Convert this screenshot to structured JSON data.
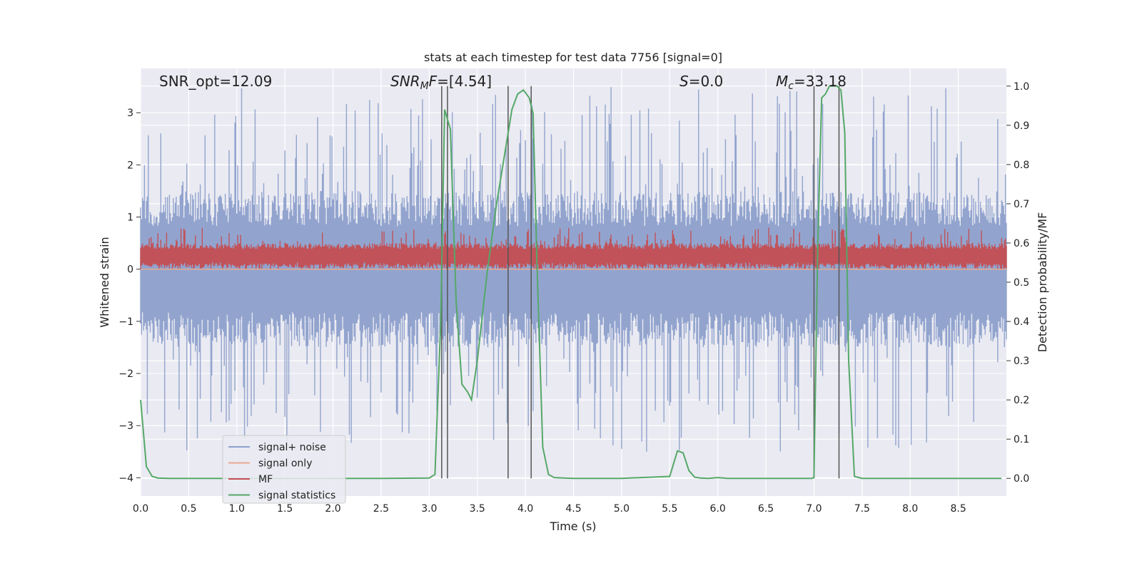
{
  "chart_data": {
    "type": "line",
    "title": "stats at each timestep for test data 7756 [signal=0]",
    "xlabel": "Time (s)",
    "ylabel_left": "Whitened strain",
    "ylabel_right": "Detection probability/MF",
    "xlim": [
      0.0,
      9.0
    ],
    "ylim_left": [
      -4.35,
      3.85
    ],
    "ylim_right": [
      -0.045,
      1.045
    ],
    "x_ticks": [
      0.0,
      0.5,
      1.0,
      1.5,
      2.0,
      2.5,
      3.0,
      3.5,
      4.0,
      4.5,
      5.0,
      5.5,
      6.0,
      6.5,
      7.0,
      7.5,
      8.0,
      8.5
    ],
    "x_tick_labels": [
      "0.0",
      "0.5",
      "1.0",
      "1.5",
      "2.0",
      "2.5",
      "3.0",
      "3.5",
      "4.0",
      "4.5",
      "5.0",
      "5.5",
      "6.0",
      "6.5",
      "7.0",
      "7.5",
      "8.0",
      "8.5"
    ],
    "y_left_ticks": [
      -4,
      -3,
      -2,
      -1,
      0,
      1,
      2,
      3
    ],
    "y_left_tick_labels": [
      "−4",
      "−3",
      "−2",
      "−1",
      "0",
      "1",
      "2",
      "3"
    ],
    "y_right_ticks": [
      0.0,
      0.1,
      0.2,
      0.3,
      0.4,
      0.5,
      0.6,
      0.7,
      0.8,
      0.9,
      1.0
    ],
    "y_right_tick_labels": [
      "0.0",
      "0.1",
      "0.2",
      "0.3",
      "0.4",
      "0.5",
      "0.6",
      "0.7",
      "0.8",
      "0.9",
      "1.0"
    ],
    "grid": true,
    "annotations": [
      {
        "text": "SNR_opt=12.09",
        "x": 0.2,
        "y": 3.6
      },
      {
        "text": "SNR_MF=[4.54]",
        "x": 2.6,
        "y": 3.6
      },
      {
        "text": "S=0.0",
        "x": 5.6,
        "y": 3.6
      },
      {
        "text": "M_c=33.18",
        "x": 6.6,
        "y": 3.6
      }
    ],
    "vlines": [
      {
        "x": 3.13,
        "ymax": 1.0
      },
      {
        "x": 3.19,
        "ymax": 1.0
      },
      {
        "x": 3.82,
        "ymax": 1.0
      },
      {
        "x": 4.06,
        "ymax": 1.0
      },
      {
        "x": 7.0,
        "ymax": 1.0
      },
      {
        "x": 7.26,
        "ymax": 1.0
      }
    ],
    "series": [
      {
        "name": "signal+ noise",
        "color": "#8da0cb",
        "axis": "left",
        "kind": "noise_band",
        "center": 0.0,
        "band_low": -1.5,
        "band_high": 1.5,
        "peak_low": -3.5,
        "peak_high": 3.5
      },
      {
        "name": "signal only",
        "color": "#e8a88e",
        "axis": "left",
        "x": [
          0.0,
          9.0
        ],
        "y": [
          0.0,
          0.0
        ]
      },
      {
        "name": "MF",
        "color": "#c44e52",
        "axis": "left",
        "kind": "noise_band",
        "center": 0.25,
        "band_low": 0.0,
        "band_high": 0.5,
        "peak_low": 0.0,
        "peak_high": 0.8
      },
      {
        "name": "signal statistics",
        "color": "#55a868",
        "axis": "right",
        "x": [
          0.0,
          0.06,
          0.12,
          0.18,
          0.3,
          0.6,
          1.0,
          1.5,
          2.0,
          2.5,
          3.0,
          3.06,
          3.12,
          3.16,
          3.22,
          3.28,
          3.34,
          3.4,
          3.44,
          3.5,
          3.6,
          3.7,
          3.8,
          3.86,
          3.92,
          3.98,
          4.04,
          4.08,
          4.12,
          4.18,
          4.24,
          4.3,
          4.4,
          4.5,
          5.0,
          5.5,
          5.58,
          5.64,
          5.7,
          5.76,
          5.82,
          5.9,
          6.0,
          6.1,
          6.5,
          6.98,
          7.0,
          7.04,
          7.08,
          7.12,
          7.16,
          7.2,
          7.24,
          7.28,
          7.32,
          7.36,
          7.42,
          7.5,
          8.0,
          8.5,
          8.95
        ],
        "y": [
          0.2,
          0.03,
          0.005,
          0.001,
          0.0,
          0.0,
          0.0,
          0.0,
          0.0,
          0.0,
          0.001,
          0.01,
          0.4,
          0.94,
          0.89,
          0.45,
          0.24,
          0.22,
          0.2,
          0.3,
          0.52,
          0.7,
          0.85,
          0.94,
          0.98,
          0.99,
          0.97,
          0.93,
          0.55,
          0.08,
          0.01,
          0.002,
          0.001,
          0.0,
          0.0,
          0.005,
          0.07,
          0.065,
          0.02,
          0.003,
          0.001,
          0.0,
          0.002,
          0.0,
          0.0,
          0.0,
          0.003,
          0.6,
          0.97,
          0.98,
          1.0,
          1.0,
          1.0,
          0.99,
          0.88,
          0.3,
          0.005,
          0.0,
          0.0,
          0.0,
          0.0
        ]
      }
    ],
    "legend": {
      "position": "lower-left",
      "entries": [
        "signal+ noise",
        "signal only",
        "MF",
        "signal statistics"
      ]
    }
  }
}
